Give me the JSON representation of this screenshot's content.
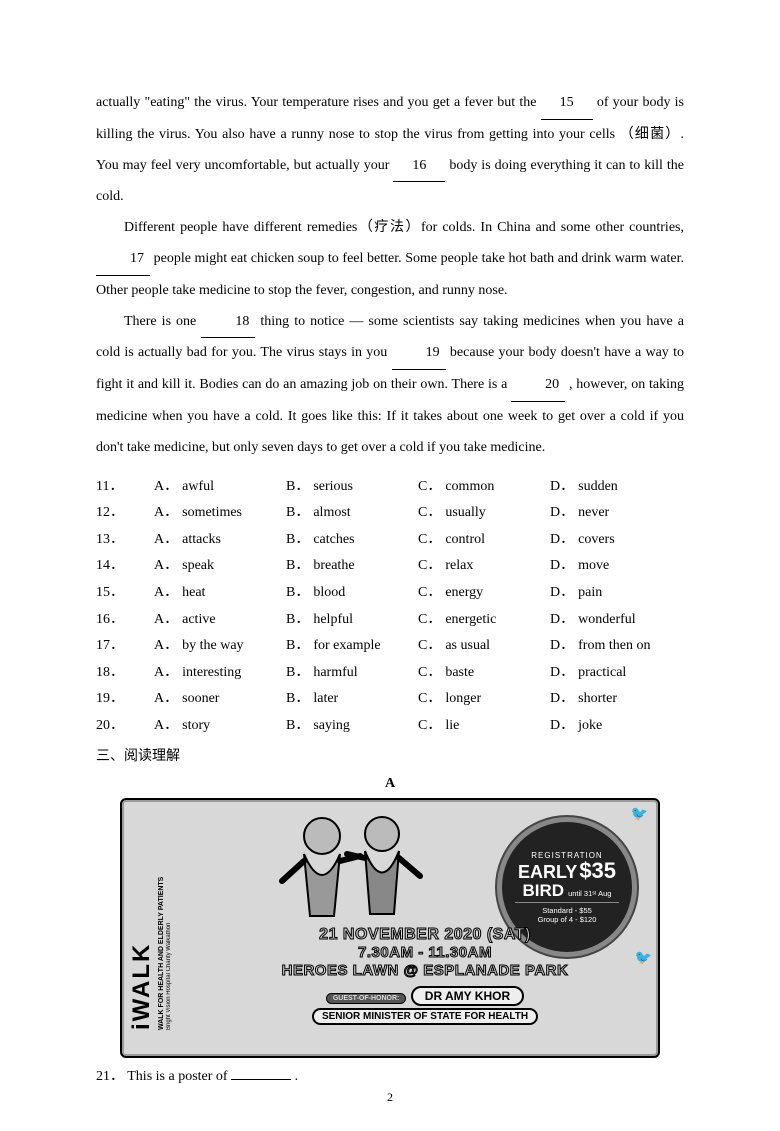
{
  "passage": {
    "p1_a": "actually \"eating\" the virus. Your temperature rises and you get a fever   but the ",
    "blank15": "15",
    "p1_b": " of your body is killing the virus. You also have a runny nose to stop the virus from getting into your cells （细菌）. You may feel very uncomfortable, but actually your ",
    "blank16": "16",
    "p1_c": " body is doing everything it can to kill the cold.",
    "p2_a": "Different people have different remedies（疗法）for colds. In China and some other countries, ",
    "blank17": "17",
    "p2_b": " people might eat chicken soup to feel better. Some people take hot bath and drink warm water. Other people take medicine to stop the fever, congestion, and runny nose.",
    "p3_a": "There is one ",
    "blank18": "18",
    "p3_b": " thing to notice — some scientists say taking medicines when you have a cold is actually bad for you. The virus stays in you ",
    "blank19": "19",
    "p3_c": " because your body doesn't have a way to fight it and kill it. Bodies can do an amazing job on their own. There is a ",
    "blank20": "20",
    "p3_d": " , however, on taking medicine when you have a cold. It goes like this: If it takes about one week to get over a cold if you don't take medicine, but only seven days to get over a cold if you take medicine."
  },
  "options": [
    {
      "n": "11",
      "A": "awful",
      "B": "serious",
      "C": "common",
      "D": "sudden"
    },
    {
      "n": "12",
      "A": "sometimes",
      "B": "almost",
      "C": "usually",
      "D": "never"
    },
    {
      "n": "13",
      "A": "attacks",
      "B": "catches",
      "C": "control",
      "D": "covers"
    },
    {
      "n": "14",
      "A": "speak",
      "B": "breathe",
      "C": "relax",
      "D": "move"
    },
    {
      "n": "15",
      "A": "heat",
      "B": "blood",
      "C": "energy",
      "D": "pain"
    },
    {
      "n": "16",
      "A": "active",
      "B": "helpful",
      "C": "energetic",
      "D": "wonderful"
    },
    {
      "n": "17",
      "A": "by the way",
      "B": "for example",
      "C": "as usual",
      "D": "from then on"
    },
    {
      "n": "18",
      "A": "interesting",
      "B": "harmful",
      "C": "baste",
      "D": "practical"
    },
    {
      "n": "19",
      "A": "sooner",
      "B": "later",
      "C": "longer",
      "D": "shorter"
    },
    {
      "n": "20",
      "A": "story",
      "B": "saying",
      "C": "lie",
      "D": "joke"
    }
  ],
  "section3": "三、阅读理解",
  "sectionA": "A",
  "poster": {
    "iwalk": "iWALK",
    "sub1": "WALK FOR HEALTH AND ELDERLY PATIENTS",
    "sub2": "Bright Vision Hospital Charity Walkathon",
    "badge": {
      "reg": "REGISTRATION",
      "early": "EARLY",
      "price": "$35",
      "bird": "BIRD",
      "until": "until 31ˢᵗ Aug",
      "std": "Standard - $55",
      "grp": "Group of 4 - $120"
    },
    "date": "21 NOVEMBER 2020 (SAT)",
    "time": "7.30AM - 11.30AM",
    "venue": "HEROES LAWN @ ESPLANADE PARK",
    "guest": "GUEST-OF-HONOR:",
    "doctor": "DR AMY KHOR",
    "minister": "SENIOR MINISTER OF STATE FOR HEALTH"
  },
  "q21": {
    "num": "21．",
    "text": "This is a poster of ",
    "end": "."
  },
  "labels": {
    "A": "A．",
    "B": "B．",
    "C": "C．",
    "D": "D．",
    "dot": "．"
  },
  "pagenum": "2"
}
